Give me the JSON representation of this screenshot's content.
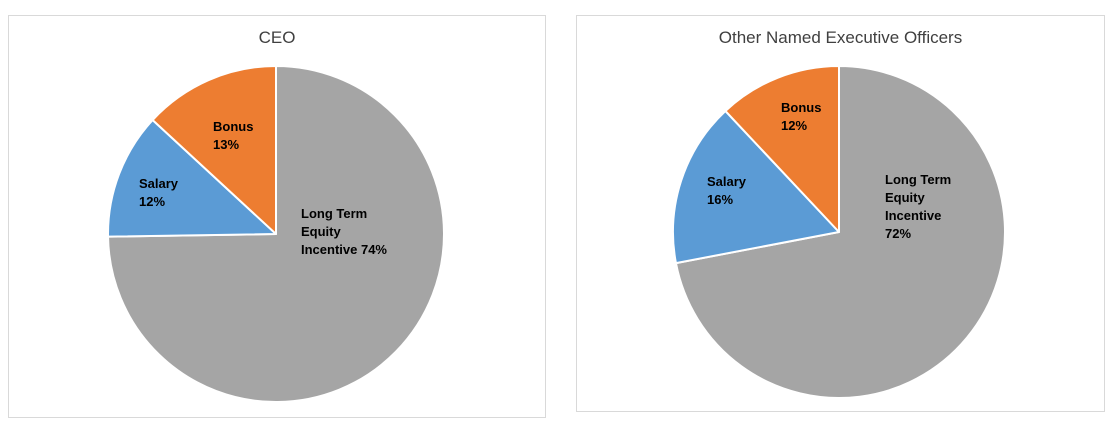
{
  "chart_data": [
    {
      "type": "pie",
      "title": "CEO",
      "slices": [
        {
          "name": "Long Term Equity Incentive",
          "value": 74,
          "color": "#a5a5a5",
          "label_lines": [
            "Long Term",
            "Equity",
            "Incentive 74%"
          ]
        },
        {
          "name": "Salary",
          "value": 12,
          "color": "#5b9bd5",
          "label_lines": [
            "Salary",
            "12%"
          ]
        },
        {
          "name": "Bonus",
          "value": 13,
          "color": "#ed7d31",
          "label_lines": [
            "Bonus",
            "13%"
          ]
        }
      ]
    },
    {
      "type": "pie",
      "title": "Other Named Executive Officers",
      "slices": [
        {
          "name": "Long Term Equity Incentive",
          "value": 72,
          "color": "#a5a5a5",
          "label_lines": [
            "Long Term",
            "Equity",
            "Incentive",
            "72%"
          ]
        },
        {
          "name": "Salary",
          "value": 16,
          "color": "#5b9bd5",
          "label_lines": [
            "Salary",
            "16%"
          ]
        },
        {
          "name": "Bonus",
          "value": 12,
          "color": "#ed7d31",
          "label_lines": [
            "Bonus",
            "12%"
          ]
        }
      ]
    }
  ]
}
